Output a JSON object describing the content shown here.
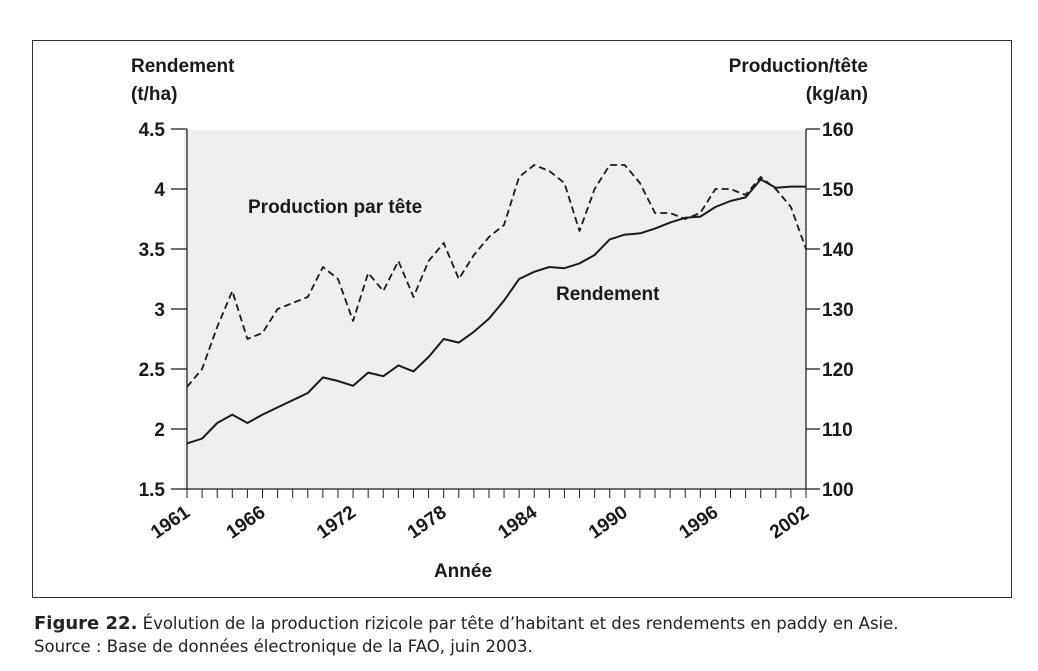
{
  "chart_data": {
    "type": "line",
    "xlabel": "Année",
    "y_left_label": [
      "Rendement",
      "(t/ha)"
    ],
    "y_right_label": [
      "Production/tête",
      "(kg/an)"
    ],
    "x_range": [
      1961,
      2002
    ],
    "x_tick_labels": [
      "1961",
      "1966",
      "1972",
      "1978",
      "1984",
      "1990",
      "1996",
      "2002"
    ],
    "y_left_range": [
      1.5,
      4.5
    ],
    "y_left_ticks": [
      "1.5",
      "2",
      "2.5",
      "3",
      "3.5",
      "4",
      "4.5"
    ],
    "y_right_range": [
      100,
      160
    ],
    "y_right_ticks": [
      "100",
      "110",
      "120",
      "130",
      "140",
      "150",
      "160"
    ],
    "series": [
      {
        "name": "Rendement",
        "axis": "left",
        "style": "solid",
        "x": [
          1961,
          1962,
          1963,
          1964,
          1965,
          1966,
          1967,
          1968,
          1969,
          1970,
          1971,
          1972,
          1973,
          1974,
          1975,
          1976,
          1977,
          1978,
          1979,
          1980,
          1981,
          1982,
          1983,
          1984,
          1985,
          1986,
          1987,
          1988,
          1989,
          1990,
          1991,
          1992,
          1993,
          1994,
          1995,
          1996,
          1997,
          1998,
          1999,
          2000,
          2001,
          2002
        ],
        "values": [
          1.88,
          1.92,
          2.05,
          2.12,
          2.05,
          2.12,
          2.18,
          2.24,
          2.3,
          2.43,
          2.4,
          2.36,
          2.47,
          2.44,
          2.53,
          2.48,
          2.6,
          2.75,
          2.72,
          2.81,
          2.92,
          3.07,
          3.25,
          3.31,
          3.35,
          3.34,
          3.38,
          3.45,
          3.58,
          3.62,
          3.63,
          3.67,
          3.72,
          3.76,
          3.77,
          3.85,
          3.9,
          3.93,
          4.08,
          4.01,
          4.02,
          4.02
        ]
      },
      {
        "name": "Production par tête",
        "axis": "right",
        "style": "dashed",
        "x": [
          1961,
          1962,
          1963,
          1964,
          1965,
          1966,
          1967,
          1968,
          1969,
          1970,
          1971,
          1972,
          1973,
          1974,
          1975,
          1976,
          1977,
          1978,
          1979,
          1980,
          1981,
          1982,
          1983,
          1984,
          1985,
          1986,
          1987,
          1988,
          1989,
          1990,
          1991,
          1992,
          1993,
          1994,
          1995,
          1996,
          1997,
          1998,
          1999,
          2000,
          2001,
          2002
        ],
        "values": [
          117,
          120,
          127,
          133,
          125,
          126,
          130,
          131,
          132,
          137,
          135,
          128,
          136,
          133,
          138,
          132,
          138,
          141,
          135,
          139,
          142,
          144,
          152,
          154,
          153,
          151,
          143,
          150,
          154,
          154,
          151,
          146,
          146,
          145,
          146,
          150,
          150,
          149,
          152,
          150,
          147,
          140
        ]
      }
    ],
    "annotations": [
      "Production par tête",
      "Rendement"
    ],
    "grid": false
  },
  "caption": {
    "figure_label": "Figure 22.",
    "figure_text": " Évolution de la production rizicole par tête d’habitant et des rendements en paddy en Asie.",
    "source": "Source : Base de données électronique de la FAO, juin 2003."
  }
}
